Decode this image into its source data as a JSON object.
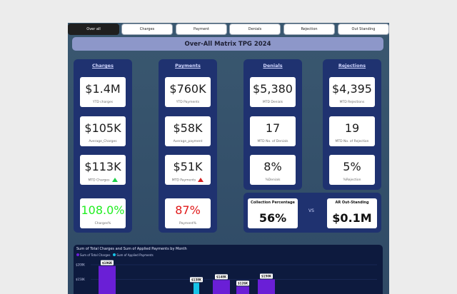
{
  "tabs": [
    {
      "label": "Over all",
      "active": true
    },
    {
      "label": "Charges",
      "active": false
    },
    {
      "label": "Payment",
      "active": false
    },
    {
      "label": "Denials",
      "active": false
    },
    {
      "label": "Rejection",
      "active": false
    },
    {
      "label": "Out Standing",
      "active": false
    }
  ],
  "header": {
    "title": "Over-All Matrix TPG 2024"
  },
  "columns": {
    "charges": {
      "title": "Charges",
      "cards": [
        {
          "value": "$1.4M",
          "label": "YTD charges"
        },
        {
          "value": "$105K",
          "label": "Average_Charges"
        },
        {
          "value": "$113K",
          "label": "MTD Charges"
        },
        {
          "value": "108.0%",
          "label": "Charges%"
        }
      ],
      "trend": "up"
    },
    "payments": {
      "title": "Payments",
      "cards": [
        {
          "value": "$760K",
          "label": "YTD Payments"
        },
        {
          "value": "$58K",
          "label": "Average_payment"
        },
        {
          "value": "$51K",
          "label": "MTD Payments"
        },
        {
          "value": "87%",
          "label": "Payment%"
        }
      ],
      "trend": "down"
    },
    "denials": {
      "title": "Denials",
      "cards": [
        {
          "value": "$5,380",
          "label": "MTD Denials"
        },
        {
          "value": "17",
          "label": "MTD No. of Denials"
        },
        {
          "value": "8%",
          "label": "%Denials"
        }
      ]
    },
    "rejections": {
      "title": "Rejections",
      "cards": [
        {
          "value": "$4,395",
          "label": "MTD Rejections"
        },
        {
          "value": "19",
          "label": "MTD No. of Rejection"
        },
        {
          "value": "5%",
          "label": "%Rejection"
        }
      ]
    }
  },
  "combo": {
    "collection_label": "Collection Percentage",
    "collection_value": "56%",
    "vs": "VS",
    "ar_label": "AR Out-Standing",
    "ar_value": "$0.1M"
  },
  "colors": {
    "accent_green": "#1fd14a",
    "accent_red": "#d42020",
    "charges_pct_color": "#22ee22",
    "payment_pct_color": "#e01818",
    "series1": "#6a1fd6",
    "series2": "#17c3e6"
  },
  "chart_data": {
    "type": "bar",
    "title": "Sum of Total Charges and Sum of Applied Payments by Month",
    "legend": [
      "Sum of Total Charges",
      "Sum of Applied Payments"
    ],
    "yticks": [
      "$200K",
      "$150K"
    ],
    "ylim": [
      0,
      200
    ],
    "series": [
      {
        "name": "Sum of Total Charges",
        "values": [
          196,
          null,
          null,
          null,
          null,
          null
        ]
      },
      {
        "name": "Sum of Applied Payments",
        "values": [
          null,
          null,
          138,
          null,
          null,
          null
        ]
      }
    ],
    "visible_bars": [
      {
        "value": 196,
        "label": "$196K"
      },
      {
        "value": 138,
        "label": "$138K"
      },
      {
        "value": 148,
        "label": "$148K"
      },
      {
        "value": 126,
        "label": "$126K"
      },
      {
        "value": 150,
        "label": "$150K"
      }
    ]
  }
}
